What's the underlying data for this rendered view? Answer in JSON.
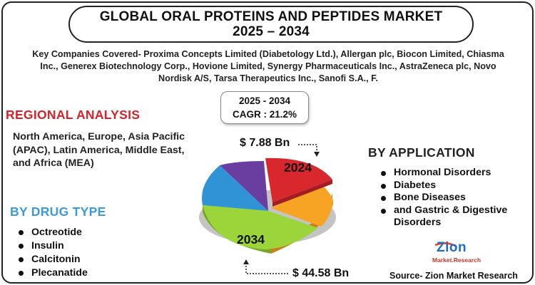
{
  "title": {
    "line1": "GLOBAL  ORAL PROTEINS AND PEPTIDES MARKET",
    "line2": "2025 – 2034"
  },
  "companies_text": "Key Companies Covered- Proxima Concepts Limited (Diabetology Ltd.), Allergan plc, Biocon Limited, Chiasma Inc., Generex Biotechnology Corp., Hovione Limited, Synergy Pharmaceuticals Inc., AstraZeneca plc, Novo Nordisk A/S, Tarsa Therapeutics Inc., Sanofi S.A., F.",
  "cagr": {
    "period": "2025 - 2034",
    "text": "CAGR : 21.2%"
  },
  "regional": {
    "heading": "REGIONAL ANALYSIS",
    "text": "North America, Europe, Asia Pacific (APAC), Latin America, Middle East, and Africa (MEA)"
  },
  "drug_type": {
    "heading": "BY DRUG TYPE",
    "items": [
      "Octreotide",
      "Insulin",
      "Calcitonin",
      "Plecanatide"
    ]
  },
  "application": {
    "heading": "BY APPLICATION",
    "items": [
      "Hormonal Disorders",
      "Diabetes",
      "Bone Diseases",
      "and Gastric & Digestive",
      "Disorders"
    ]
  },
  "market_values": {
    "start_value": "$ 7.88 Bn",
    "end_value": "$ 44.58 Bn",
    "start_year": "2024",
    "end_year": "2034"
  },
  "pie_colors": {
    "red": "#d8272d",
    "orange": "#f7a324",
    "green": "#9bd53a",
    "blue": "#2f93d6",
    "purple": "#6a3ea1"
  },
  "logo": {
    "word": "Zion",
    "sub": "Market.Research"
  },
  "source": "Source- Zion Market Research"
}
